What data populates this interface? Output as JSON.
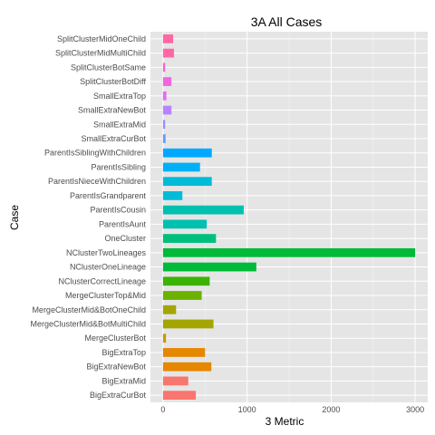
{
  "chart_data": {
    "type": "bar",
    "orientation": "horizontal",
    "title": "3A All Cases",
    "xlabel": "3 Metric",
    "ylabel": "Case",
    "xlim": [
      -150,
      3150
    ],
    "xticks": [
      0,
      1000,
      2000,
      3000
    ],
    "grid": true,
    "legend": "none",
    "categories": [
      "SplitClusterMidOneChild",
      "SplitClusterMidMultiChild",
      "SplitClusterBotSame",
      "SplitClusterBotDiff",
      "SmallExtraTop",
      "SmallExtraNewBot",
      "SmallExtraMid",
      "SmallExtraCurBot",
      "ParentIsSiblingWithChildren",
      "ParentIsSibling",
      "ParentIsNieceWithChildren",
      "ParentIsGrandparent",
      "ParentIsCousin",
      "ParentIsAunt",
      "OneCluster",
      "NClusterTwoLineages",
      "NClusterOneLineage",
      "NClusterCorrectLineage",
      "MergeClusterTop&Mid",
      "MergeClusterMid&BotOneChild",
      "MergeClusterMid&BotMultiChild",
      "MergeClusterBot",
      "BigExtraTop",
      "BigExtraNewBot",
      "BigExtraMid",
      "BigExtraCurBot"
    ],
    "values": [
      120,
      130,
      25,
      100,
      40,
      100,
      25,
      30,
      580,
      440,
      580,
      230,
      960,
      520,
      630,
      3000,
      1110,
      555,
      460,
      155,
      600,
      35,
      500,
      575,
      300,
      390
    ],
    "colors": [
      "#F8766D",
      "#F8766D",
      "#E58700",
      "#E58700",
      "#C99800",
      "#A3A500",
      "#A3A500",
      "#6BB100",
      "#3BB300",
      "#00BA38",
      "#00BA38",
      "#00BF7D",
      "#00C0AF",
      "#00C0AF",
      "#00BCD8",
      "#00BCD8",
      "#00B0F6",
      "#00A9FF",
      "#619CFF",
      "#9590FF",
      "#B983FF",
      "#E76BF3",
      "#F066E0",
      "#FD61D1",
      "#FF67A4",
      "#FF67A4"
    ],
    "panel_background": "#E5E5E5",
    "gridline_color": "#FFFFFF"
  }
}
